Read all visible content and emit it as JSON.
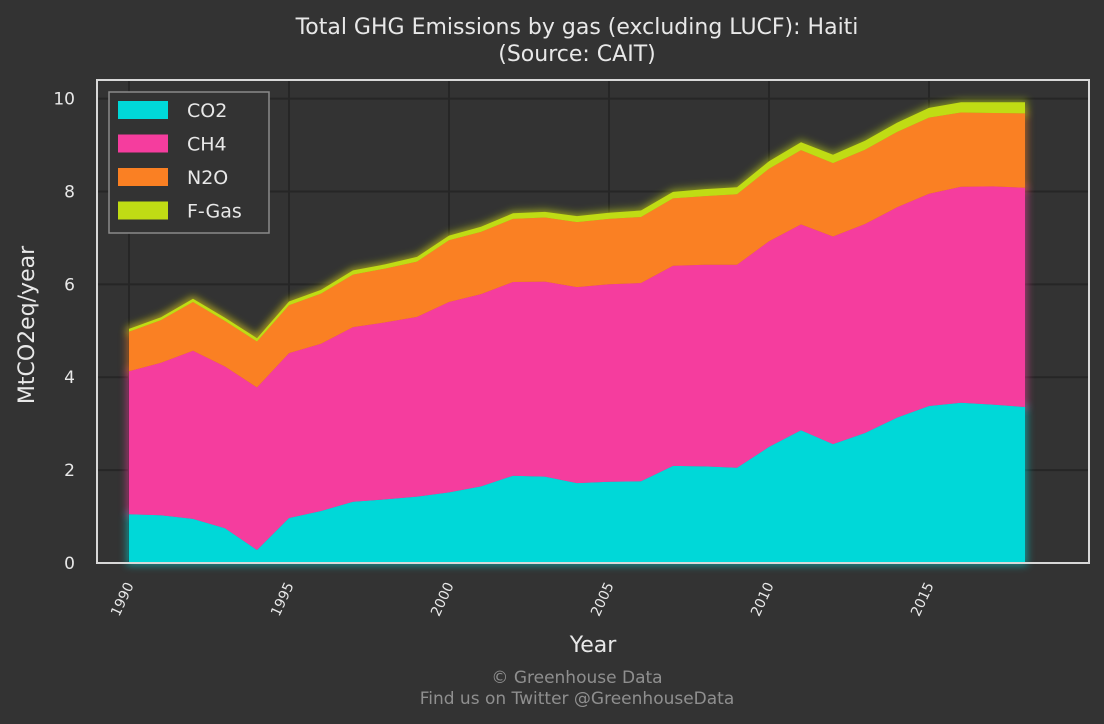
{
  "chart_data": {
    "type": "area",
    "stacked": true,
    "title": "Total GHG Emissions by gas (excluding LUCF): Haiti",
    "subtitle": "(Source: CAIT)",
    "xlabel": "Year",
    "ylabel": "MtCO2eq/year",
    "xlim": [
      1989,
      2020
    ],
    "ylim": [
      0,
      10.4
    ],
    "x_ticks": [
      1990,
      1995,
      2000,
      2005,
      2010,
      2015
    ],
    "y_ticks": [
      0,
      2,
      4,
      6,
      8,
      10
    ],
    "grid": true,
    "legend_position": "top-left",
    "x": [
      1990,
      1991,
      1992,
      1993,
      1994,
      1995,
      1996,
      1997,
      1998,
      1999,
      2000,
      2001,
      2002,
      2003,
      2004,
      2005,
      2006,
      2007,
      2008,
      2009,
      2010,
      2011,
      2012,
      2013,
      2014,
      2015,
      2016,
      2017,
      2018
    ],
    "series": [
      {
        "name": "CO2",
        "color": "#00d8d8",
        "values": [
          1.05,
          1.03,
          0.95,
          0.75,
          0.28,
          0.97,
          1.12,
          1.32,
          1.37,
          1.43,
          1.52,
          1.65,
          1.88,
          1.86,
          1.72,
          1.75,
          1.76,
          2.09,
          2.08,
          2.05,
          2.5,
          2.86,
          2.56,
          2.8,
          3.13,
          3.38,
          3.45,
          3.41,
          3.36
        ]
      },
      {
        "name": "CH4",
        "color": "#f53d9e",
        "values": [
          3.08,
          3.28,
          3.62,
          3.48,
          3.5,
          3.55,
          3.6,
          3.76,
          3.81,
          3.87,
          4.1,
          4.14,
          4.17,
          4.2,
          4.22,
          4.25,
          4.27,
          4.31,
          4.34,
          4.37,
          4.43,
          4.43,
          4.47,
          4.5,
          4.53,
          4.57,
          4.65,
          4.7,
          4.72
        ]
      },
      {
        "name": "N2O",
        "color": "#fa8023",
        "values": [
          0.85,
          0.92,
          1.05,
          0.98,
          0.99,
          1.03,
          1.08,
          1.13,
          1.16,
          1.19,
          1.33,
          1.34,
          1.36,
          1.38,
          1.4,
          1.41,
          1.42,
          1.45,
          1.48,
          1.52,
          1.56,
          1.6,
          1.58,
          1.6,
          1.62,
          1.64,
          1.6,
          1.58,
          1.6
        ]
      },
      {
        "name": "F-Gas",
        "color": "#c0dc14",
        "values": [
          0.06,
          0.06,
          0.07,
          0.07,
          0.07,
          0.08,
          0.08,
          0.09,
          0.09,
          0.1,
          0.1,
          0.11,
          0.12,
          0.12,
          0.13,
          0.13,
          0.14,
          0.14,
          0.15,
          0.15,
          0.16,
          0.17,
          0.18,
          0.19,
          0.2,
          0.21,
          0.22,
          0.23,
          0.24
        ]
      }
    ]
  },
  "footer": {
    "copyright": "© Greenhouse Data",
    "twitter": "Find us on Twitter @GreenhouseData"
  }
}
